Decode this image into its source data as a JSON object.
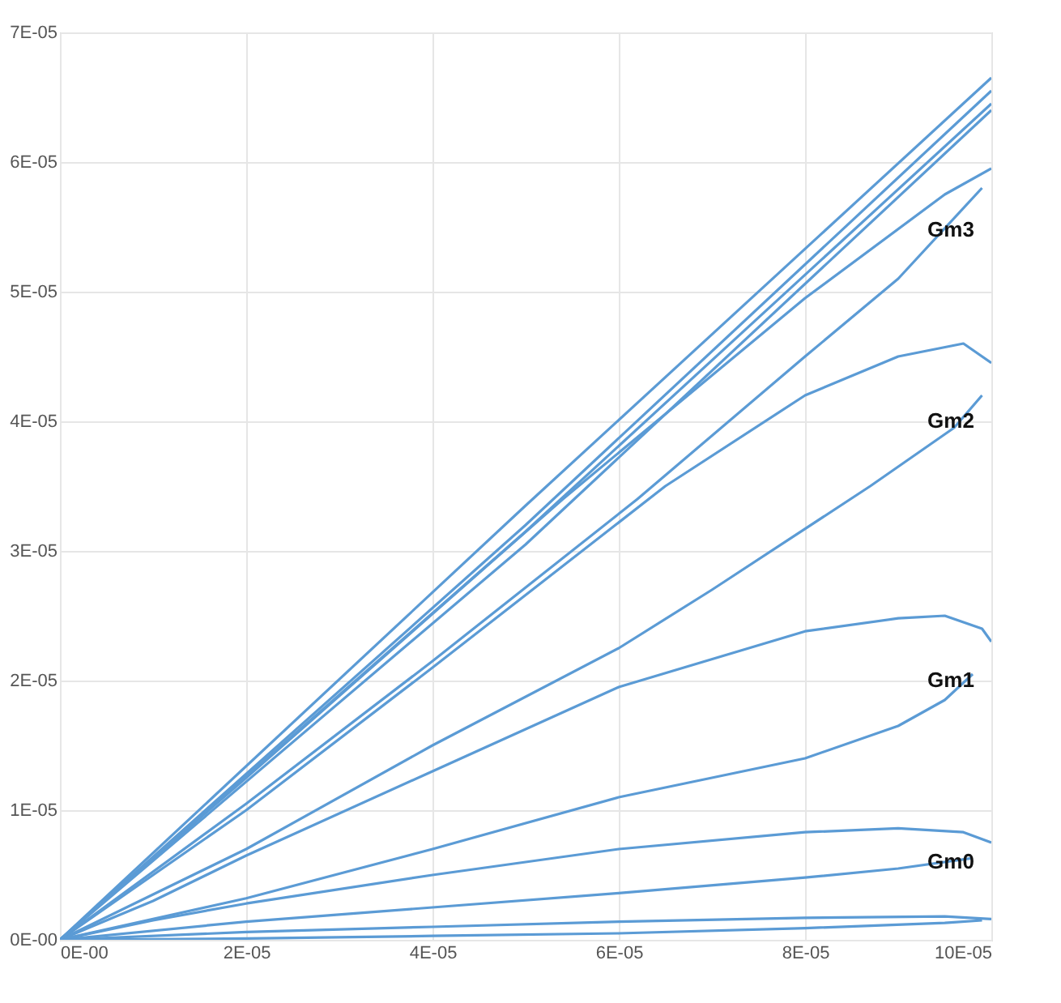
{
  "chart_data": {
    "type": "line",
    "xlim": [
      0,
      0.0001
    ],
    "ylim": [
      0,
      7e-05
    ],
    "xticks": [
      {
        "value": 0,
        "label": "0E-00"
      },
      {
        "value": 2e-05,
        "label": "2E-05"
      },
      {
        "value": 4e-05,
        "label": "4E-05"
      },
      {
        "value": 6e-05,
        "label": "6E-05"
      },
      {
        "value": 8e-05,
        "label": "8E-05"
      },
      {
        "value": 0.0001,
        "label": "10E-05"
      }
    ],
    "yticks": [
      {
        "value": 0,
        "label": "0E-00"
      },
      {
        "value": 1e-05,
        "label": "1E-05"
      },
      {
        "value": 2e-05,
        "label": "2E-05"
      },
      {
        "value": 3e-05,
        "label": "3E-05"
      },
      {
        "value": 4e-05,
        "label": "4E-05"
      },
      {
        "value": 5e-05,
        "label": "5E-05"
      },
      {
        "value": 6e-05,
        "label": "6E-05"
      },
      {
        "value": 7e-05,
        "label": "7E-05"
      }
    ],
    "grid": true,
    "legend": false,
    "marker": "none",
    "line_style": "solid",
    "series": [
      {
        "color": "#5b9bd5",
        "x": [
          0,
          2e-05,
          4e-05,
          6e-05,
          8e-05,
          9.5e-05,
          0.0001
        ],
        "values": [
          0,
          6e-07,
          1e-06,
          1.4e-06,
          1.7e-06,
          1.8e-06,
          1.6e-06
        ]
      },
      {
        "color": "#5b9bd5",
        "x": [
          0,
          2e-05,
          4e-05,
          6e-05,
          8e-05,
          9.5e-05,
          9.9e-05
        ],
        "values": [
          0,
          1e-07,
          3e-07,
          5e-07,
          9e-07,
          1.3e-06,
          1.5e-06
        ]
      },
      {
        "color": "#5b9bd5",
        "x": [
          0,
          1e-05,
          2e-05,
          4e-05,
          6e-05,
          8e-05,
          9e-05,
          9.7e-05,
          0.0001
        ],
        "values": [
          0,
          1.5e-06,
          2.8e-06,
          5e-06,
          7e-06,
          8.3e-06,
          8.6e-06,
          8.3e-06,
          7.5e-06
        ]
      },
      {
        "color": "#5b9bd5",
        "x": [
          0,
          2e-05,
          4e-05,
          6e-05,
          8e-05,
          9e-05,
          9.8e-05
        ],
        "values": [
          0,
          1.4e-06,
          2.5e-06,
          3.6e-06,
          4.8e-06,
          5.5e-06,
          6.3e-06
        ]
      },
      {
        "color": "#5b9bd5",
        "x": [
          0,
          1e-05,
          2e-05,
          4e-05,
          6e-05,
          8e-05,
          9e-05,
          9.5e-05,
          9.9e-05,
          0.0001
        ],
        "values": [
          0,
          3e-06,
          6.5e-06,
          1.3e-05,
          1.95e-05,
          2.38e-05,
          2.48e-05,
          2.5e-05,
          2.4e-05,
          2.3e-05
        ]
      },
      {
        "color": "#5b9bd5",
        "x": [
          0,
          2e-05,
          4e-05,
          6e-05,
          8e-05,
          9e-05,
          9.5e-05,
          9.8e-05
        ],
        "values": [
          0,
          3.2e-06,
          7e-06,
          1.1e-05,
          1.4e-05,
          1.65e-05,
          1.85e-05,
          2.05e-05
        ]
      },
      {
        "color": "#5b9bd5",
        "x": [
          0,
          2e-05,
          4e-05,
          6.5e-05,
          8e-05,
          9e-05,
          9.7e-05,
          0.0001
        ],
        "values": [
          0,
          1e-05,
          2.1e-05,
          3.5e-05,
          4.2e-05,
          4.5e-05,
          4.6e-05,
          4.45e-05
        ]
      },
      {
        "color": "#5b9bd5",
        "x": [
          0,
          2e-05,
          4e-05,
          6e-05,
          7e-05,
          8.7e-05,
          9.6e-05,
          9.9e-05
        ],
        "values": [
          0,
          7e-06,
          1.5e-05,
          2.25e-05,
          2.7e-05,
          3.5e-05,
          3.95e-05,
          4.2e-05
        ]
      },
      {
        "color": "#5b9bd5",
        "x": [
          0,
          2e-05,
          5.4e-05,
          8e-05,
          9.5e-05,
          0.0001
        ],
        "values": [
          0,
          1.25e-05,
          3.4e-05,
          4.95e-05,
          5.75e-05,
          5.95e-05
        ]
      },
      {
        "color": "#5b9bd5",
        "x": [
          0,
          2e-05,
          4e-05,
          6.2e-05,
          8e-05,
          9e-05,
          9.9e-05
        ],
        "values": [
          0,
          1.05e-05,
          2.15e-05,
          3.4e-05,
          4.5e-05,
          5.1e-05,
          5.8e-05
        ]
      },
      {
        "color": "#5b9bd5",
        "x": [
          0,
          5e-05,
          0.0001
        ],
        "values": [
          0,
          3.35e-05,
          6.65e-05
        ]
      },
      {
        "color": "#5b9bd5",
        "x": [
          0,
          5e-05,
          0.0001
        ],
        "values": [
          0,
          3.2e-05,
          6.55e-05
        ]
      },
      {
        "color": "#5b9bd5",
        "x": [
          0,
          5e-05,
          0.0001
        ],
        "values": [
          0,
          3.15e-05,
          6.45e-05
        ]
      },
      {
        "color": "#5b9bd5",
        "x": [
          0,
          5e-05,
          0.0001
        ],
        "values": [
          0,
          3.05e-05,
          6.4e-05
        ]
      }
    ],
    "annotations": [
      "Gm3",
      "Gm2",
      "Gm1",
      "Gm0"
    ]
  }
}
